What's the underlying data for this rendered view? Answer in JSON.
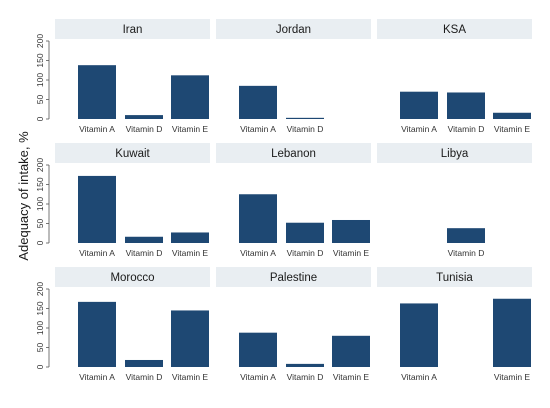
{
  "chart_data": {
    "type": "bar",
    "layout": "small-multiples",
    "ylabel": "Adequacy of intake, %",
    "ylim": [
      0,
      200
    ],
    "yticks": [
      0,
      50,
      100,
      150,
      200
    ],
    "bar_color": "#1e4873",
    "categories": [
      "Vitamin A",
      "Vitamin D",
      "Vitamin E"
    ],
    "panels": [
      {
        "title": "Iran",
        "values": [
          138,
          10,
          112
        ],
        "labels": [
          "Vitamin A",
          "Vitamin D",
          "Vitamin E"
        ]
      },
      {
        "title": "Jordan",
        "values": [
          85,
          3,
          null
        ],
        "labels": [
          "Vitamin A",
          "Vitamin D",
          ""
        ]
      },
      {
        "title": "KSA",
        "values": [
          70,
          68,
          16
        ],
        "labels": [
          "Vitamin A",
          "Vitamin D",
          "Vitamin E"
        ]
      },
      {
        "title": "Kuwait",
        "values": [
          172,
          16,
          27
        ],
        "labels": [
          "Vitamin A",
          "Vitamin D",
          "Vitamin E"
        ]
      },
      {
        "title": "Lebanon",
        "values": [
          125,
          52,
          59
        ],
        "labels": [
          "Vitamin A",
          "Vitamin D",
          "Vitamin E"
        ]
      },
      {
        "title": "Libya",
        "values": [
          null,
          38,
          null
        ],
        "labels": [
          "",
          "Vitamin D",
          ""
        ]
      },
      {
        "title": "Morocco",
        "values": [
          167,
          18,
          145
        ],
        "labels": [
          "Vitamin A",
          "Vitamin D",
          "Vitamin E"
        ]
      },
      {
        "title": "Palestine",
        "values": [
          88,
          8,
          80
        ],
        "labels": [
          "Vitamin A",
          "Vitamin D",
          "Vitamin E"
        ]
      },
      {
        "title": "Tunisia",
        "values": [
          163,
          null,
          175
        ],
        "labels": [
          "Vitamin A",
          "",
          "Vitamin E"
        ]
      }
    ]
  }
}
